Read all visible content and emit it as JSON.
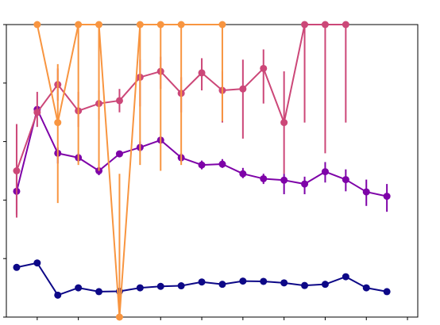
{
  "chart_data": {
    "type": "line",
    "title": "",
    "xlabel": "",
    "ylabel": "",
    "xlim": [
      -0.5,
      19.5
    ],
    "ylim": [
      0,
      1.0
    ],
    "grid": false,
    "legend": "none",
    "x": [
      0,
      1,
      2,
      3,
      4,
      5,
      6,
      7,
      8,
      9,
      10,
      11,
      12,
      13,
      14,
      15,
      16,
      17,
      18,
      19
    ],
    "series": [
      {
        "color": "#0d0887",
        "values": [
          0.17,
          0.185,
          0.075,
          0.1,
          0.087,
          0.088,
          0.1,
          0.105,
          0.107,
          0.12,
          0.112,
          0.123,
          0.122,
          0.117,
          0.108,
          0.112,
          0.138,
          0.1,
          0.087,
          null
        ],
        "err_lo": [
          0.2,
          0.185,
          0.075,
          0.1,
          0.087,
          0.088,
          0.1,
          0.105,
          0.107,
          0.12,
          0.112,
          0.123,
          0.122,
          0.117,
          0.108,
          0.112,
          0.138,
          0.1,
          0.087,
          null
        ],
        "err_hi": [
          0.2,
          0.185,
          0.075,
          0.1,
          0.087,
          0.088,
          0.1,
          0.105,
          0.107,
          0.12,
          0.112,
          0.123,
          0.122,
          0.117,
          0.108,
          0.112,
          0.138,
          0.1,
          0.087,
          null
        ]
      },
      {
        "color": "#7e03a8",
        "values": [
          0.43,
          0.71,
          0.56,
          0.545,
          0.5,
          0.558,
          0.58,
          0.605,
          0.545,
          0.52,
          0.523,
          0.49,
          0.473,
          0.468,
          0.455,
          0.497,
          0.47,
          0.428,
          0.413,
          null
        ],
        "err_lo": [
          0.35,
          0.71,
          0.525,
          0.53,
          0.485,
          0.555,
          0.565,
          0.6,
          0.53,
          0.505,
          0.51,
          0.475,
          0.455,
          0.42,
          0.42,
          0.46,
          0.43,
          0.38,
          0.36,
          null
        ],
        "err_hi": [
          0.51,
          0.72,
          0.58,
          0.56,
          0.515,
          0.565,
          0.6,
          0.61,
          0.56,
          0.535,
          0.54,
          0.51,
          0.49,
          0.49,
          0.48,
          0.53,
          0.505,
          0.47,
          0.455,
          null
        ]
      },
      {
        "color": "#cc4778",
        "values": [
          0.5,
          0.7,
          0.795,
          0.705,
          0.73,
          0.74,
          0.82,
          0.84,
          0.765,
          0.835,
          0.775,
          0.78,
          0.85,
          0.665,
          1.0,
          1.0,
          1.0,
          null,
          null,
          null
        ],
        "err_lo": [
          0.34,
          0.65,
          0.74,
          0.65,
          0.675,
          0.7,
          0.72,
          0.78,
          0.7,
          0.775,
          0.665,
          0.61,
          0.73,
          0.49,
          0.665,
          0.56,
          0.665,
          null,
          null,
          null
        ],
        "err_hi": [
          0.66,
          0.77,
          0.85,
          0.77,
          0.775,
          0.78,
          0.88,
          0.89,
          0.82,
          0.885,
          0.84,
          0.88,
          0.915,
          0.84,
          1.0,
          1.0,
          1.0,
          null,
          null,
          null
        ]
      },
      {
        "color": "#f89540",
        "values": [
          null,
          1.0,
          0.665,
          1.0,
          1.0,
          0.0,
          1.0,
          1.0,
          1.0,
          null,
          1.0,
          null,
          null,
          null,
          null,
          null,
          null,
          null,
          null,
          null
        ],
        "err_lo": [
          null,
          1.0,
          0.39,
          0.52,
          0.5,
          0.0,
          0.52,
          0.5,
          0.52,
          null,
          0.67,
          null,
          null,
          null,
          null,
          null,
          null,
          null,
          null,
          null
        ],
        "err_hi": [
          null,
          1.0,
          0.865,
          1.0,
          1.0,
          0.49,
          1.0,
          1.0,
          1.0,
          null,
          1.0,
          null,
          null,
          null,
          null,
          null,
          null,
          null,
          null,
          null
        ]
      }
    ]
  }
}
